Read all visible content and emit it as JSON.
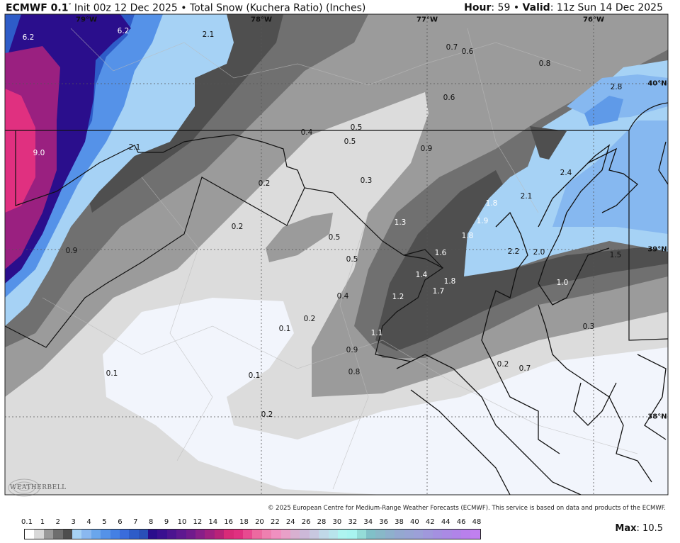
{
  "header": {
    "model": "ECMWF 0.1",
    "degree": "°",
    "init": "Init 00z 12 Dec 2025",
    "separator": "•",
    "product": "Total Snow (Kuchera Ratio) (Inches)",
    "hour_label": "Hour",
    "hour": ": 59",
    "valid_label": "Valid",
    "valid": ": 11z Sun 14 Dec 2025"
  },
  "grid_labels": [
    "79°W",
    "78°W",
    "77°W",
    "76°W",
    "40°N",
    "39°N",
    "38°N"
  ],
  "contour_labels": [
    "6.2",
    "6.2",
    "2.1",
    "9.0",
    "2.1",
    "0.9",
    "0.2",
    "0.2",
    "0.4",
    "0.5",
    "0.5",
    "0.3",
    "0.9",
    "0.7",
    "0.6",
    "0.8",
    "0.6",
    "2.8",
    "2.4",
    "2.1",
    "1.8",
    "1.3",
    "1.9",
    "1.8",
    "1.6",
    "2.2",
    "2.0",
    "1.5",
    "0.5",
    "0.5",
    "1.4",
    "1.8",
    "1.7",
    "0.4",
    "1.2",
    "1.0",
    "0.1",
    "0.2",
    "1.1",
    "0.3",
    "0.9",
    "0.2",
    "0.7",
    "0.8",
    "0.1",
    "0.1",
    "0.2"
  ],
  "copyright": "© 2025 European Centre for Medium-Range Weather Forecasts (ECMWF). This service is based on data and products of the ECMWF.",
  "logo": "WEATHERBELL",
  "legend": {
    "ticks": [
      "0.1",
      "1",
      "2",
      "3",
      "4",
      "5",
      "6",
      "7",
      "8",
      "9",
      "10",
      "12",
      "14",
      "16",
      "18",
      "20",
      "22",
      "24",
      "26",
      "28",
      "30",
      "32",
      "34",
      "36",
      "38",
      "40",
      "42",
      "44",
      "46",
      "48"
    ],
    "colors": [
      "#ffffff",
      "#d8d8d8",
      "#9a9a9a",
      "#6e6e6e",
      "#4d4d4d",
      "#a6d2f5",
      "#8ab8f0",
      "#6aa6ec",
      "#5592e8",
      "#4480e4",
      "#3a6cdc",
      "#2e5cc8",
      "#2a50b8",
      "#2a0e8c",
      "#3a1090",
      "#4c1490",
      "#5e1890",
      "#701a8c",
      "#881e88",
      "#a02080",
      "#b82278",
      "#d82a78",
      "#e03080",
      "#e84a90",
      "#ec6aa0",
      "#ee80b0",
      "#f090c0",
      "#e8a0c8",
      "#d8b0d0",
      "#ccb8d8",
      "#c8c8e0",
      "#c0d8e8",
      "#b8e4ec",
      "#aef4f0",
      "#a8f4f0",
      "#94dcd8",
      "#80c0c8",
      "#88b8c8",
      "#8eb0cc",
      "#94a8d0",
      "#98a4d4",
      "#9ca0d8",
      "#a098dc",
      "#a490e0",
      "#aa8ae4",
      "#b084e8",
      "#b880ec",
      "#c080f0"
    ],
    "max_label": "Max",
    "max_value": ": 10.5"
  }
}
